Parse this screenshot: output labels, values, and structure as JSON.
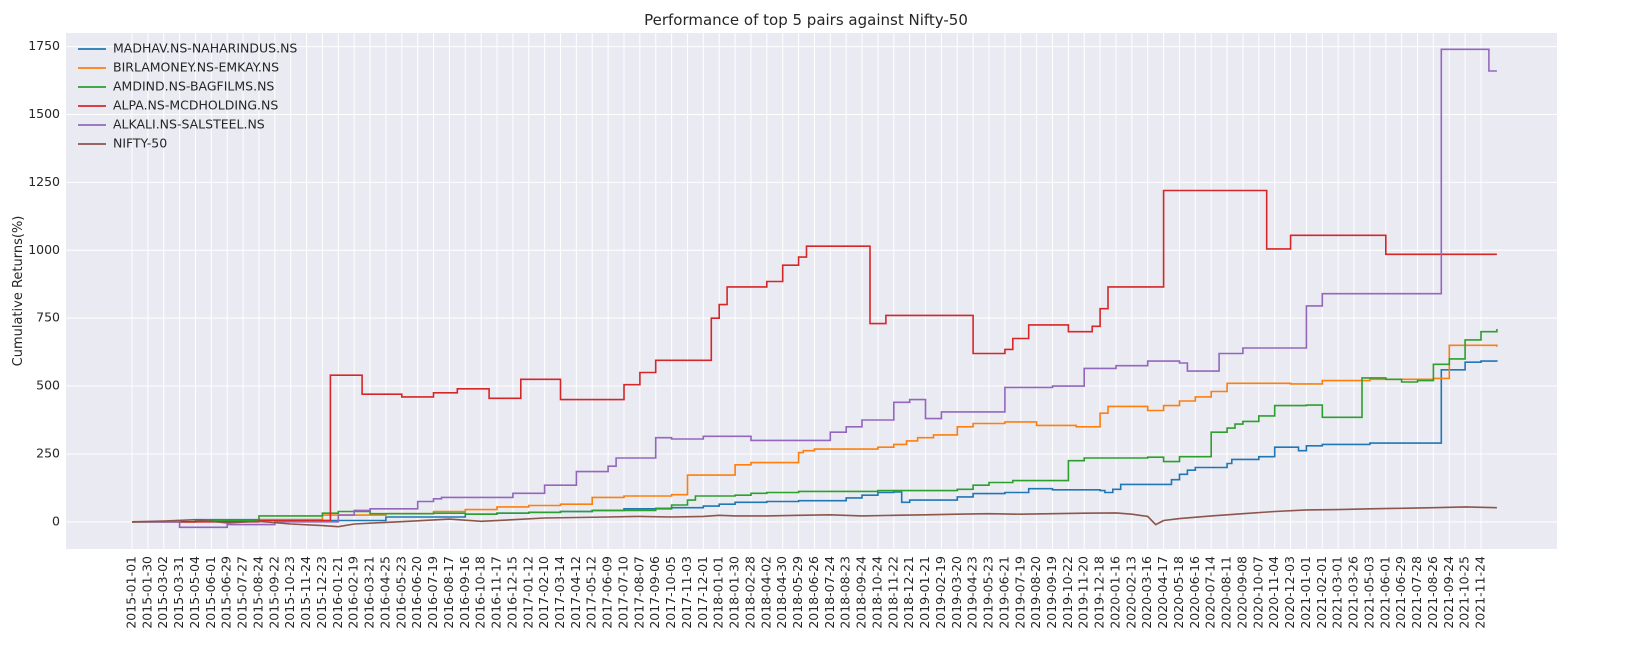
{
  "chart_data": {
    "type": "line",
    "title": "Performance of top 5 pairs against Nifty-50",
    "xlabel": "",
    "ylabel": "Cumulative Returns(%)",
    "ylim": [
      -100,
      1800
    ],
    "grid": true,
    "legend_position": "top-left",
    "x_ticks": [
      "2015-01-01",
      "2015-01-30",
      "2015-03-02",
      "2015-03-31",
      "2015-05-04",
      "2015-06-01",
      "2015-06-29",
      "2015-07-27",
      "2015-08-24",
      "2015-09-22",
      "2015-10-23",
      "2015-11-24",
      "2015-12-23",
      "2016-01-21",
      "2016-02-19",
      "2016-03-21",
      "2016-04-25",
      "2016-05-23",
      "2016-06-20",
      "2016-07-19",
      "2016-08-17",
      "2016-09-16",
      "2016-10-18",
      "2016-11-17",
      "2016-12-15",
      "2017-01-12",
      "2017-02-10",
      "2017-03-14",
      "2017-04-12",
      "2017-05-12",
      "2017-06-09",
      "2017-07-10",
      "2017-08-07",
      "2017-09-06",
      "2017-10-05",
      "2017-11-03",
      "2017-12-01",
      "2018-01-01",
      "2018-01-30",
      "2018-02-28",
      "2018-04-02",
      "2018-04-30",
      "2018-05-29",
      "2018-06-26",
      "2018-07-24",
      "2018-08-23",
      "2018-09-24",
      "2018-10-24",
      "2018-11-22",
      "2018-12-21",
      "2019-01-21",
      "2019-02-19",
      "2019-03-20",
      "2019-04-23",
      "2019-05-23",
      "2019-06-21",
      "2019-07-19",
      "2019-08-20",
      "2019-09-19",
      "2019-10-22",
      "2019-11-20",
      "2019-12-18",
      "2020-01-16",
      "2020-02-13",
      "2020-03-16",
      "2020-04-17",
      "2020-05-18",
      "2020-06-16",
      "2020-07-14",
      "2020-08-11",
      "2020-09-08",
      "2020-10-07",
      "2020-11-04",
      "2020-12-03",
      "2021-01-01",
      "2021-02-01",
      "2021-03-01",
      "2021-03-26",
      "2021-05-03",
      "2021-06-01",
      "2021-06-29",
      "2021-07-28",
      "2021-08-26",
      "2021-09-24",
      "2021-10-25",
      "2021-11-24"
    ],
    "y_ticks": [
      0,
      250,
      500,
      750,
      1000,
      1250,
      1500,
      1750
    ],
    "series": [
      {
        "name": "MADHAV.NS-NAHARINDUS.NS",
        "color": "#1f77b4",
        "style": "step",
        "points": [
          [
            0,
            0
          ],
          [
            4,
            8
          ],
          [
            12,
            5
          ],
          [
            16,
            18
          ],
          [
            21,
            28
          ],
          [
            23,
            32
          ],
          [
            25,
            35
          ],
          [
            27,
            38
          ],
          [
            29,
            42
          ],
          [
            31,
            48
          ],
          [
            34,
            52
          ],
          [
            36,
            58
          ],
          [
            37,
            65
          ],
          [
            38,
            72
          ],
          [
            40,
            75
          ],
          [
            42,
            78
          ],
          [
            45,
            88
          ],
          [
            46,
            98
          ],
          [
            47,
            108
          ],
          [
            48,
            110
          ],
          [
            48.5,
            72
          ],
          [
            49,
            80
          ],
          [
            52,
            92
          ],
          [
            53,
            104
          ],
          [
            55,
            108
          ],
          [
            56.5,
            122
          ],
          [
            58,
            118
          ],
          [
            61,
            115
          ],
          [
            61.3,
            108
          ],
          [
            61.8,
            120
          ],
          [
            62.3,
            138
          ],
          [
            65,
            138
          ],
          [
            65.5,
            155
          ],
          [
            66,
            175
          ],
          [
            66.5,
            190
          ],
          [
            67,
            200
          ],
          [
            69,
            215
          ],
          [
            69.3,
            230
          ],
          [
            71,
            240
          ],
          [
            72,
            275
          ],
          [
            73.5,
            262
          ],
          [
            74,
            280
          ],
          [
            75,
            285
          ],
          [
            78,
            290
          ],
          [
            82,
            290
          ],
          [
            82.5,
            560
          ],
          [
            84,
            588
          ],
          [
            85,
            592
          ],
          [
            86,
            590
          ]
        ]
      },
      {
        "name": "BIRLAMONEY.NS-EMKAY.NS",
        "color": "#ff7f0e",
        "style": "step",
        "points": [
          [
            0,
            0
          ],
          [
            4,
            5
          ],
          [
            8,
            8
          ],
          [
            12,
            25
          ],
          [
            16,
            30
          ],
          [
            19,
            38
          ],
          [
            21,
            45
          ],
          [
            23,
            55
          ],
          [
            25,
            60
          ],
          [
            27,
            65
          ],
          [
            29,
            90
          ],
          [
            31,
            95
          ],
          [
            34,
            100
          ],
          [
            35,
            172
          ],
          [
            38,
            210
          ],
          [
            39,
            218
          ],
          [
            42,
            255
          ],
          [
            42.3,
            262
          ],
          [
            43,
            268
          ],
          [
            47,
            275
          ],
          [
            48,
            285
          ],
          [
            48.8,
            298
          ],
          [
            49.5,
            310
          ],
          [
            50.5,
            320
          ],
          [
            52,
            350
          ],
          [
            53,
            362
          ],
          [
            55,
            368
          ],
          [
            57,
            355
          ],
          [
            59.5,
            350
          ],
          [
            61,
            400
          ],
          [
            61.5,
            425
          ],
          [
            64,
            410
          ],
          [
            65,
            428
          ],
          [
            66,
            445
          ],
          [
            67,
            460
          ],
          [
            68,
            480
          ],
          [
            69,
            510
          ],
          [
            72,
            510
          ],
          [
            73,
            508
          ],
          [
            75,
            520
          ],
          [
            78,
            525
          ],
          [
            82,
            528
          ],
          [
            83,
            650
          ],
          [
            86,
            645
          ]
        ]
      },
      {
        "name": "AMDIND.NS-BAGFILMS.NS",
        "color": "#2ca02c",
        "style": "step",
        "points": [
          [
            0,
            0
          ],
          [
            4,
            5
          ],
          [
            8,
            22
          ],
          [
            12,
            32
          ],
          [
            13,
            38
          ],
          [
            15,
            30
          ],
          [
            17,
            30
          ],
          [
            19,
            32
          ],
          [
            21,
            28
          ],
          [
            23,
            32
          ],
          [
            25,
            35
          ],
          [
            27,
            38
          ],
          [
            29,
            42
          ],
          [
            33,
            50
          ],
          [
            34,
            62
          ],
          [
            35,
            80
          ],
          [
            35.5,
            95
          ],
          [
            38,
            98
          ],
          [
            39,
            105
          ],
          [
            40,
            108
          ],
          [
            42,
            112
          ],
          [
            45,
            112
          ],
          [
            47,
            115
          ],
          [
            52,
            120
          ],
          [
            53,
            135
          ],
          [
            54,
            145
          ],
          [
            55.5,
            152
          ],
          [
            58,
            152
          ],
          [
            59,
            225
          ],
          [
            60,
            235
          ],
          [
            64,
            238
          ],
          [
            65,
            222
          ],
          [
            66,
            240
          ],
          [
            67,
            240
          ],
          [
            68,
            330
          ],
          [
            69,
            345
          ],
          [
            69.5,
            360
          ],
          [
            70,
            370
          ],
          [
            71,
            390
          ],
          [
            72,
            428
          ],
          [
            74,
            430
          ],
          [
            75,
            385
          ],
          [
            77,
            385
          ],
          [
            77.5,
            530
          ],
          [
            79,
            525
          ],
          [
            80,
            515
          ],
          [
            81,
            520
          ],
          [
            82,
            580
          ],
          [
            83,
            600
          ],
          [
            84,
            670
          ],
          [
            85,
            700
          ],
          [
            86,
            710
          ]
        ]
      },
      {
        "name": "ALPA.NS-MCDHOLDING.NS",
        "color": "#d62728",
        "style": "step",
        "points": [
          [
            0,
            0
          ],
          [
            8,
            5
          ],
          [
            12.5,
            540
          ],
          [
            14.5,
            470
          ],
          [
            17,
            460
          ],
          [
            19,
            475
          ],
          [
            20.5,
            490
          ],
          [
            22.5,
            455
          ],
          [
            24.5,
            525
          ],
          [
            27,
            450
          ],
          [
            31,
            505
          ],
          [
            32,
            550
          ],
          [
            33,
            595
          ],
          [
            36.5,
            750
          ],
          [
            37,
            800
          ],
          [
            37.5,
            865
          ],
          [
            40,
            885
          ],
          [
            41,
            945
          ],
          [
            42,
            975
          ],
          [
            42.5,
            1015
          ],
          [
            46.5,
            730
          ],
          [
            47.5,
            760
          ],
          [
            53,
            620
          ],
          [
            55,
            635
          ],
          [
            55.5,
            675
          ],
          [
            56.5,
            725
          ],
          [
            59,
            700
          ],
          [
            60.5,
            720
          ],
          [
            61,
            785
          ],
          [
            61.5,
            865
          ],
          [
            65,
            1220
          ],
          [
            71.5,
            1005
          ],
          [
            73,
            1055
          ],
          [
            79,
            985
          ],
          [
            86,
            985
          ]
        ]
      },
      {
        "name": "ALKALI.NS-SALSTEEL.NS",
        "color": "#9467bd",
        "style": "step",
        "points": [
          [
            0,
            0
          ],
          [
            3,
            -20
          ],
          [
            6,
            -10
          ],
          [
            9,
            0
          ],
          [
            13,
            25
          ],
          [
            14,
            42
          ],
          [
            15,
            48
          ],
          [
            18,
            75
          ],
          [
            19,
            85
          ],
          [
            19.5,
            90
          ],
          [
            24,
            105
          ],
          [
            26,
            135
          ],
          [
            28,
            185
          ],
          [
            30,
            205
          ],
          [
            30.5,
            235
          ],
          [
            33,
            310
          ],
          [
            34,
            305
          ],
          [
            36,
            315
          ],
          [
            39,
            300
          ],
          [
            42,
            300
          ],
          [
            44,
            330
          ],
          [
            45,
            350
          ],
          [
            46,
            375
          ],
          [
            48,
            440
          ],
          [
            49,
            450
          ],
          [
            50,
            380
          ],
          [
            51,
            405
          ],
          [
            55,
            495
          ],
          [
            58,
            500
          ],
          [
            60,
            565
          ],
          [
            62,
            575
          ],
          [
            64,
            592
          ],
          [
            66,
            585
          ],
          [
            66.5,
            555
          ],
          [
            68.5,
            620
          ],
          [
            70,
            640
          ],
          [
            74,
            795
          ],
          [
            75,
            840
          ],
          [
            82,
            840
          ],
          [
            82.5,
            1740
          ],
          [
            85,
            1740
          ],
          [
            85.5,
            1660
          ],
          [
            86,
            1660
          ]
        ]
      },
      {
        "name": "NIFTY-50",
        "color": "#8c564b",
        "style": "line",
        "points": [
          [
            0,
            0
          ],
          [
            2,
            3
          ],
          [
            4,
            8
          ],
          [
            6,
            -4
          ],
          [
            8,
            2
          ],
          [
            10,
            -8
          ],
          [
            12,
            -14
          ],
          [
            13,
            -18
          ],
          [
            14,
            -8
          ],
          [
            16,
            -2
          ],
          [
            18,
            4
          ],
          [
            20,
            10
          ],
          [
            22,
            2
          ],
          [
            24,
            8
          ],
          [
            26,
            14
          ],
          [
            28,
            16
          ],
          [
            30,
            18
          ],
          [
            32,
            20
          ],
          [
            34,
            18
          ],
          [
            36,
            20
          ],
          [
            37,
            24
          ],
          [
            38,
            22
          ],
          [
            40,
            22
          ],
          [
            42,
            24
          ],
          [
            44,
            26
          ],
          [
            46,
            22
          ],
          [
            48,
            24
          ],
          [
            50,
            26
          ],
          [
            52,
            28
          ],
          [
            54,
            30
          ],
          [
            56,
            28
          ],
          [
            58,
            30
          ],
          [
            60,
            32
          ],
          [
            62,
            33
          ],
          [
            63,
            28
          ],
          [
            64,
            20
          ],
          [
            64.5,
            -10
          ],
          [
            65,
            5
          ],
          [
            66,
            12
          ],
          [
            68,
            22
          ],
          [
            70,
            30
          ],
          [
            72,
            38
          ],
          [
            74,
            44
          ],
          [
            76,
            45
          ],
          [
            78,
            48
          ],
          [
            80,
            50
          ],
          [
            82,
            52
          ],
          [
            84,
            55
          ],
          [
            86,
            52
          ]
        ]
      }
    ]
  }
}
